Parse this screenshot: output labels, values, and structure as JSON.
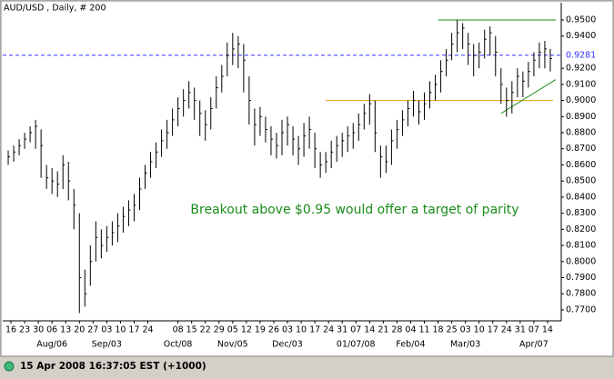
{
  "chart_data": {
    "type": "ohlc",
    "title": "AUD/USD , Daily, # 200",
    "annotation": {
      "text": "Breakout above $0.95 would offer a target of parity",
      "color": "#1a8c1a"
    },
    "status": "15 Apr 2008 16:37:05 EST (+1000)",
    "color": "#000000",
    "x": [
      0,
      2,
      4,
      6,
      8,
      10,
      12,
      14,
      16,
      18,
      20,
      22,
      24,
      26,
      28,
      30,
      32,
      34,
      36,
      38,
      40,
      42,
      44,
      46,
      48,
      50,
      52,
      54,
      56,
      58,
      60,
      62,
      64,
      66,
      68,
      70,
      72,
      74,
      76,
      78,
      80,
      82,
      84,
      86,
      88,
      90,
      92,
      94,
      96,
      98,
      100,
      102,
      104,
      106,
      108,
      110,
      112,
      114,
      116,
      118,
      120,
      122,
      124,
      126,
      128,
      130,
      132,
      134,
      136,
      138,
      140,
      142,
      144,
      146,
      148,
      150,
      152,
      154,
      156,
      158,
      160,
      162,
      164,
      166,
      168,
      170,
      172,
      174,
      176,
      178,
      180,
      182,
      184,
      186,
      188,
      190,
      192,
      194,
      196,
      198
    ],
    "high": [
      0.869,
      0.872,
      0.876,
      0.88,
      0.884,
      0.888,
      0.882,
      0.86,
      0.858,
      0.856,
      0.866,
      0.862,
      0.845,
      0.83,
      0.795,
      0.81,
      0.825,
      0.82,
      0.822,
      0.825,
      0.83,
      0.834,
      0.838,
      0.842,
      0.852,
      0.86,
      0.868,
      0.874,
      0.882,
      0.888,
      0.895,
      0.902,
      0.907,
      0.912,
      0.908,
      0.9,
      0.894,
      0.902,
      0.915,
      0.922,
      0.936,
      0.942,
      0.94,
      0.935,
      0.915,
      0.895,
      0.896,
      0.89,
      0.884,
      0.88,
      0.888,
      0.89,
      0.884,
      0.878,
      0.886,
      0.89,
      0.88,
      0.868,
      0.868,
      0.875,
      0.878,
      0.88,
      0.884,
      0.886,
      0.892,
      0.898,
      0.904,
      0.9,
      0.872,
      0.872,
      0.882,
      0.888,
      0.894,
      0.9,
      0.906,
      0.9,
      0.905,
      0.912,
      0.916,
      0.925,
      0.932,
      0.942,
      0.95,
      0.948,
      0.942,
      0.935,
      0.936,
      0.944,
      0.946,
      0.94,
      0.92,
      0.908,
      0.912,
      0.92,
      0.918,
      0.924,
      0.93,
      0.936,
      0.937,
      0.932
    ],
    "low": [
      0.86,
      0.862,
      0.866,
      0.87,
      0.874,
      0.87,
      0.852,
      0.845,
      0.842,
      0.84,
      0.845,
      0.838,
      0.82,
      0.768,
      0.772,
      0.785,
      0.8,
      0.802,
      0.806,
      0.81,
      0.812,
      0.818,
      0.822,
      0.825,
      0.832,
      0.845,
      0.852,
      0.858,
      0.865,
      0.87,
      0.878,
      0.884,
      0.89,
      0.895,
      0.888,
      0.878,
      0.875,
      0.882,
      0.895,
      0.905,
      0.915,
      0.922,
      0.92,
      0.905,
      0.885,
      0.872,
      0.878,
      0.874,
      0.866,
      0.864,
      0.866,
      0.872,
      0.866,
      0.86,
      0.865,
      0.87,
      0.858,
      0.852,
      0.855,
      0.858,
      0.862,
      0.865,
      0.868,
      0.87,
      0.875,
      0.882,
      0.885,
      0.868,
      0.852,
      0.855,
      0.86,
      0.87,
      0.878,
      0.884,
      0.89,
      0.885,
      0.888,
      0.895,
      0.9,
      0.905,
      0.915,
      0.925,
      0.93,
      0.932,
      0.922,
      0.915,
      0.92,
      0.926,
      0.928,
      0.915,
      0.898,
      0.89,
      0.892,
      0.902,
      0.902,
      0.908,
      0.915,
      0.92,
      0.92,
      0.918
    ],
    "close": [
      0.865,
      0.868,
      0.872,
      0.876,
      0.88,
      0.884,
      0.872,
      0.852,
      0.85,
      0.848,
      0.86,
      0.85,
      0.835,
      0.79,
      0.78,
      0.8,
      0.815,
      0.81,
      0.815,
      0.818,
      0.822,
      0.828,
      0.832,
      0.835,
      0.845,
      0.855,
      0.862,
      0.868,
      0.875,
      0.88,
      0.888,
      0.895,
      0.9,
      0.905,
      0.9,
      0.892,
      0.885,
      0.895,
      0.908,
      0.915,
      0.928,
      0.932,
      0.935,
      0.925,
      0.9,
      0.885,
      0.89,
      0.882,
      0.876,
      0.872,
      0.88,
      0.885,
      0.876,
      0.87,
      0.878,
      0.882,
      0.87,
      0.86,
      0.862,
      0.868,
      0.872,
      0.875,
      0.878,
      0.88,
      0.885,
      0.892,
      0.898,
      0.88,
      0.865,
      0.862,
      0.875,
      0.882,
      0.888,
      0.895,
      0.9,
      0.893,
      0.898,
      0.905,
      0.91,
      0.918,
      0.925,
      0.935,
      0.942,
      0.945,
      0.935,
      0.928,
      0.93,
      0.938,
      0.942,
      0.93,
      0.91,
      0.9,
      0.905,
      0.915,
      0.912,
      0.918,
      0.925,
      0.93,
      0.932,
      0.926
    ],
    "xlim": [
      -2,
      202
    ],
    "ylim": [
      0.7632,
      0.9607
    ],
    "xticks": [
      {
        "value": 1,
        "label": "16"
      },
      {
        "value": 6,
        "label": "23"
      },
      {
        "value": 11,
        "label": "30"
      },
      {
        "value": 16,
        "label": "06"
      },
      {
        "value": 21,
        "label": "13"
      },
      {
        "value": 26,
        "label": "20"
      },
      {
        "value": 31,
        "label": "27"
      },
      {
        "value": 36,
        "label": "03"
      },
      {
        "value": 41,
        "label": "10"
      },
      {
        "value": 46,
        "label": "17"
      },
      {
        "value": 51,
        "label": "24"
      },
      {
        "value": 62,
        "label": "08"
      },
      {
        "value": 67,
        "label": "15"
      },
      {
        "value": 72,
        "label": "22"
      },
      {
        "value": 77,
        "label": "29"
      },
      {
        "value": 82,
        "label": "05"
      },
      {
        "value": 87,
        "label": "12"
      },
      {
        "value": 92,
        "label": "19"
      },
      {
        "value": 97,
        "label": "26"
      },
      {
        "value": 102,
        "label": "03"
      },
      {
        "value": 107,
        "label": "10"
      },
      {
        "value": 112,
        "label": "17"
      },
      {
        "value": 117,
        "label": "24"
      },
      {
        "value": 122,
        "label": "31"
      },
      {
        "value": 127,
        "label": "07"
      },
      {
        "value": 132,
        "label": "14"
      },
      {
        "value": 137,
        "label": "21"
      },
      {
        "value": 142,
        "label": "28"
      },
      {
        "value": 147,
        "label": "04"
      },
      {
        "value": 152,
        "label": "11"
      },
      {
        "value": 157,
        "label": "18"
      },
      {
        "value": 162,
        "label": "25"
      },
      {
        "value": 167,
        "label": "03"
      },
      {
        "value": 172,
        "label": "10"
      },
      {
        "value": 177,
        "label": "17"
      },
      {
        "value": 182,
        "label": "24"
      },
      {
        "value": 187,
        "label": "31"
      },
      {
        "value": 192,
        "label": "07"
      },
      {
        "value": 197,
        "label": "14"
      }
    ],
    "month_ticks": [
      {
        "value": 16,
        "label": "Aug/06"
      },
      {
        "value": 36,
        "label": "Sep/03"
      },
      {
        "value": 62,
        "label": "Oct/08"
      },
      {
        "value": 82,
        "label": "Nov/05"
      },
      {
        "value": 102,
        "label": "Dec/03"
      },
      {
        "value": 127,
        "label": "01/07/08"
      },
      {
        "value": 147,
        "label": "Feb/04"
      },
      {
        "value": 167,
        "label": "Mar/03"
      },
      {
        "value": 192,
        "label": "Apr/07"
      }
    ],
    "yticks": [
      {
        "value": 0.77,
        "label": "0.7700"
      },
      {
        "value": 0.78,
        "label": "0.7800"
      },
      {
        "value": 0.79,
        "label": "0.7900"
      },
      {
        "value": 0.8,
        "label": "0.8000"
      },
      {
        "value": 0.81,
        "label": "0.8100"
      },
      {
        "value": 0.82,
        "label": "0.8200"
      },
      {
        "value": 0.83,
        "label": "0.8300"
      },
      {
        "value": 0.84,
        "label": "0.8400"
      },
      {
        "value": 0.85,
        "label": "0.8500"
      },
      {
        "value": 0.86,
        "label": "0.8600"
      },
      {
        "value": 0.87,
        "label": "0.8700"
      },
      {
        "value": 0.88,
        "label": "0.8800"
      },
      {
        "value": 0.89,
        "label": "0.8900"
      },
      {
        "value": 0.9,
        "label": "0.9000"
      },
      {
        "value": 0.91,
        "label": "0.9100"
      },
      {
        "value": 0.92,
        "label": "0.9200"
      },
      {
        "value": 0.94,
        "label": "0.9400"
      },
      {
        "value": 0.95,
        "label": "0.9500"
      }
    ],
    "hlines": [
      {
        "value": 0.9281,
        "color": "#3333ff",
        "dash": true
      },
      {
        "value": 0.9,
        "from": 116,
        "to": 199,
        "color": "#e0a000"
      },
      {
        "value": 0.95,
        "from": 157,
        "to": 200,
        "color": "#1a8c1a"
      }
    ],
    "trendlines": [
      {
        "x": [
          180,
          200
        ],
        "y": [
          0.892,
          0.913
        ],
        "color": "#1a8c1a"
      }
    ]
  }
}
